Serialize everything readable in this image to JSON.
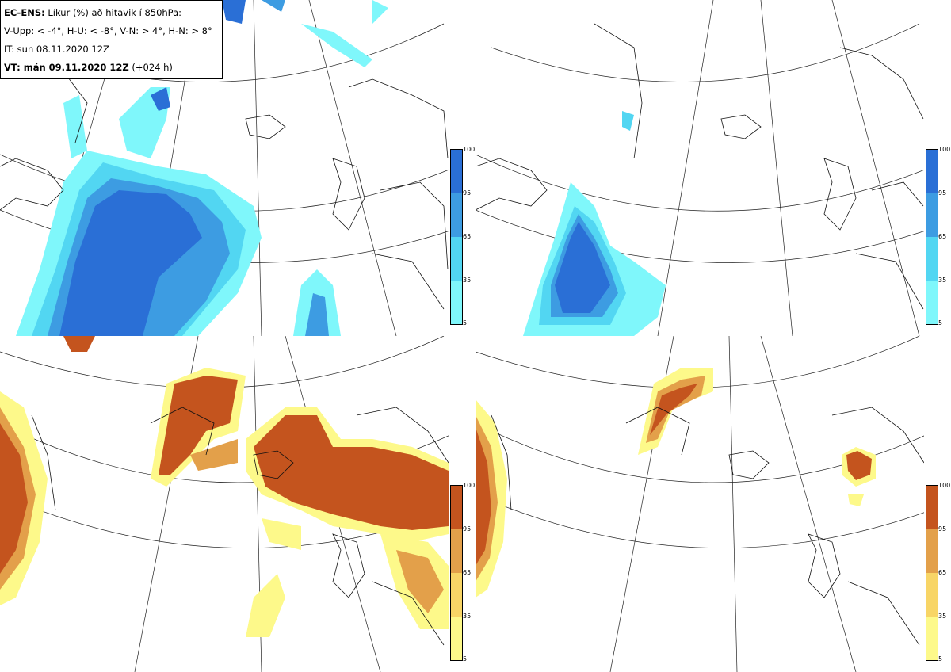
{
  "legend": {
    "line1_bold": "EC-ENS:",
    "line1_rest": " Líkur (%) að hitavik í 850hPa:",
    "line2": "V-Upp: < -4°, H-U: < -8°, V-N: > 4°, H-N: > 8°",
    "line3": "IT: sun 08.11.2020 12Z",
    "line4_bold": "VT: mán 09.11.2020 12Z",
    "line4_rest": " (+024 h)"
  },
  "colorbar_ticks": [
    "100",
    "95",
    "65",
    "35",
    "5"
  ],
  "colors": {
    "cold": [
      "#7ff7fb",
      "#52d6f2",
      "#3d9ce2",
      "#2a6fd6"
    ],
    "warm": [
      "#fdf98a",
      "#f8d566",
      "#e3a04a",
      "#c4541e"
    ]
  },
  "panels": [
    {
      "id": "top-left",
      "variable": "V-Upp",
      "scheme": "cold"
    },
    {
      "id": "top-right",
      "variable": "H-U",
      "scheme": "cold"
    },
    {
      "id": "bottom-left",
      "variable": "V-N",
      "scheme": "warm"
    },
    {
      "id": "bottom-right",
      "variable": "H-N",
      "scheme": "warm"
    }
  ]
}
